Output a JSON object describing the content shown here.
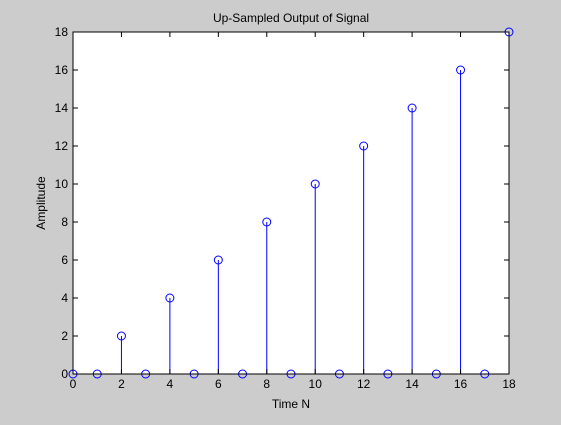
{
  "colors": {
    "background": "#cccccc",
    "axes_background": "#ffffff",
    "stem": "#0000ff",
    "axis": "#000000"
  },
  "chart_data": {
    "type": "stem",
    "title": "Up-Sampled Output of Signal",
    "xlabel": "Time N",
    "ylabel": "Amplitude",
    "xlim": [
      0,
      18
    ],
    "ylim": [
      0,
      18
    ],
    "x_ticks": [
      0,
      2,
      4,
      6,
      8,
      10,
      12,
      14,
      16,
      18
    ],
    "y_ticks": [
      0,
      2,
      4,
      6,
      8,
      10,
      12,
      14,
      16,
      18
    ],
    "grid": false,
    "marker": "circle",
    "x": [
      0,
      1,
      2,
      3,
      4,
      5,
      6,
      7,
      8,
      9,
      10,
      11,
      12,
      13,
      14,
      15,
      16,
      17,
      18
    ],
    "y": [
      0,
      0,
      2,
      0,
      4,
      0,
      6,
      0,
      8,
      0,
      10,
      0,
      12,
      0,
      14,
      0,
      16,
      0,
      18
    ]
  }
}
